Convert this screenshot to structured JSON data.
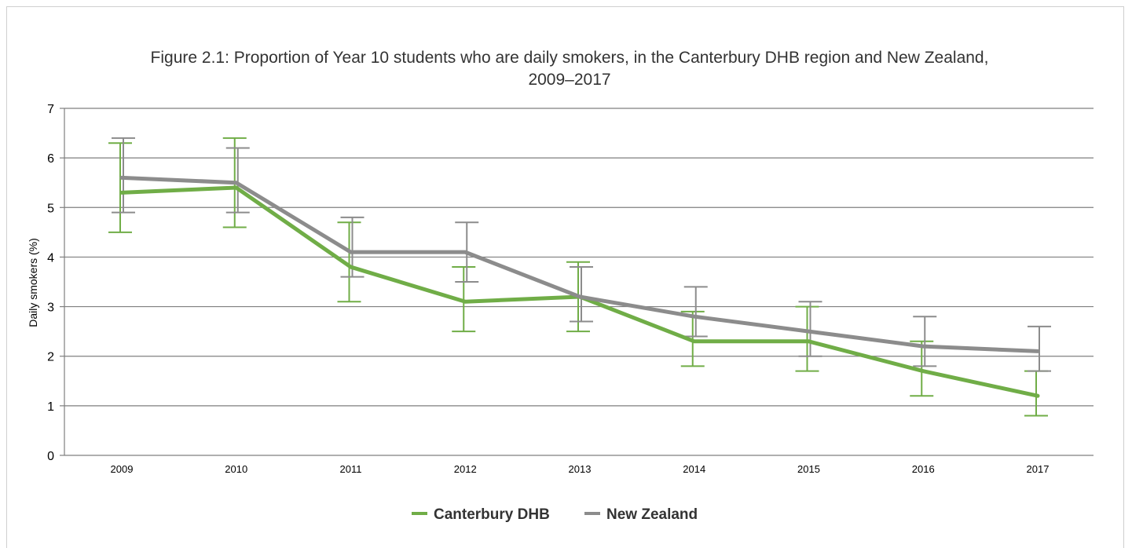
{
  "chart_data": {
    "type": "line",
    "title": "Figure 2.1: Proportion of Year 10 students who are daily smokers, in the Canterbury DHB region and New Zealand,",
    "title_line2": "2009–2017",
    "xlabel": "",
    "ylabel": "Daily smokers (%)",
    "ylim": [
      0,
      7
    ],
    "yticks": [
      "0",
      "1",
      "2",
      "3",
      "4",
      "5",
      "6",
      "7"
    ],
    "categories": [
      "2009",
      "2010",
      "2011",
      "2012",
      "2013",
      "2014",
      "2015",
      "2016",
      "2017"
    ],
    "grid": true,
    "legend_position": "bottom",
    "series": [
      {
        "name": "Canterbury DHB",
        "color": "#70ad47",
        "values": [
          5.3,
          5.4,
          3.8,
          3.1,
          3.2,
          2.3,
          2.3,
          1.7,
          1.2
        ],
        "ci_low": [
          4.5,
          4.6,
          3.1,
          2.5,
          2.5,
          1.8,
          1.7,
          1.2,
          0.8
        ],
        "ci_high": [
          6.3,
          6.4,
          4.7,
          3.8,
          3.9,
          2.9,
          3.0,
          2.3,
          1.7
        ]
      },
      {
        "name": "New Zealand",
        "color": "#8c8c8c",
        "values": [
          5.6,
          5.5,
          4.1,
          4.1,
          3.2,
          2.8,
          2.5,
          2.2,
          2.1
        ],
        "ci_low": [
          4.9,
          4.9,
          3.6,
          3.5,
          2.7,
          2.4,
          2.0,
          1.8,
          1.7
        ],
        "ci_high": [
          6.4,
          6.2,
          4.8,
          4.7,
          3.8,
          3.4,
          3.1,
          2.8,
          2.6
        ]
      }
    ]
  }
}
